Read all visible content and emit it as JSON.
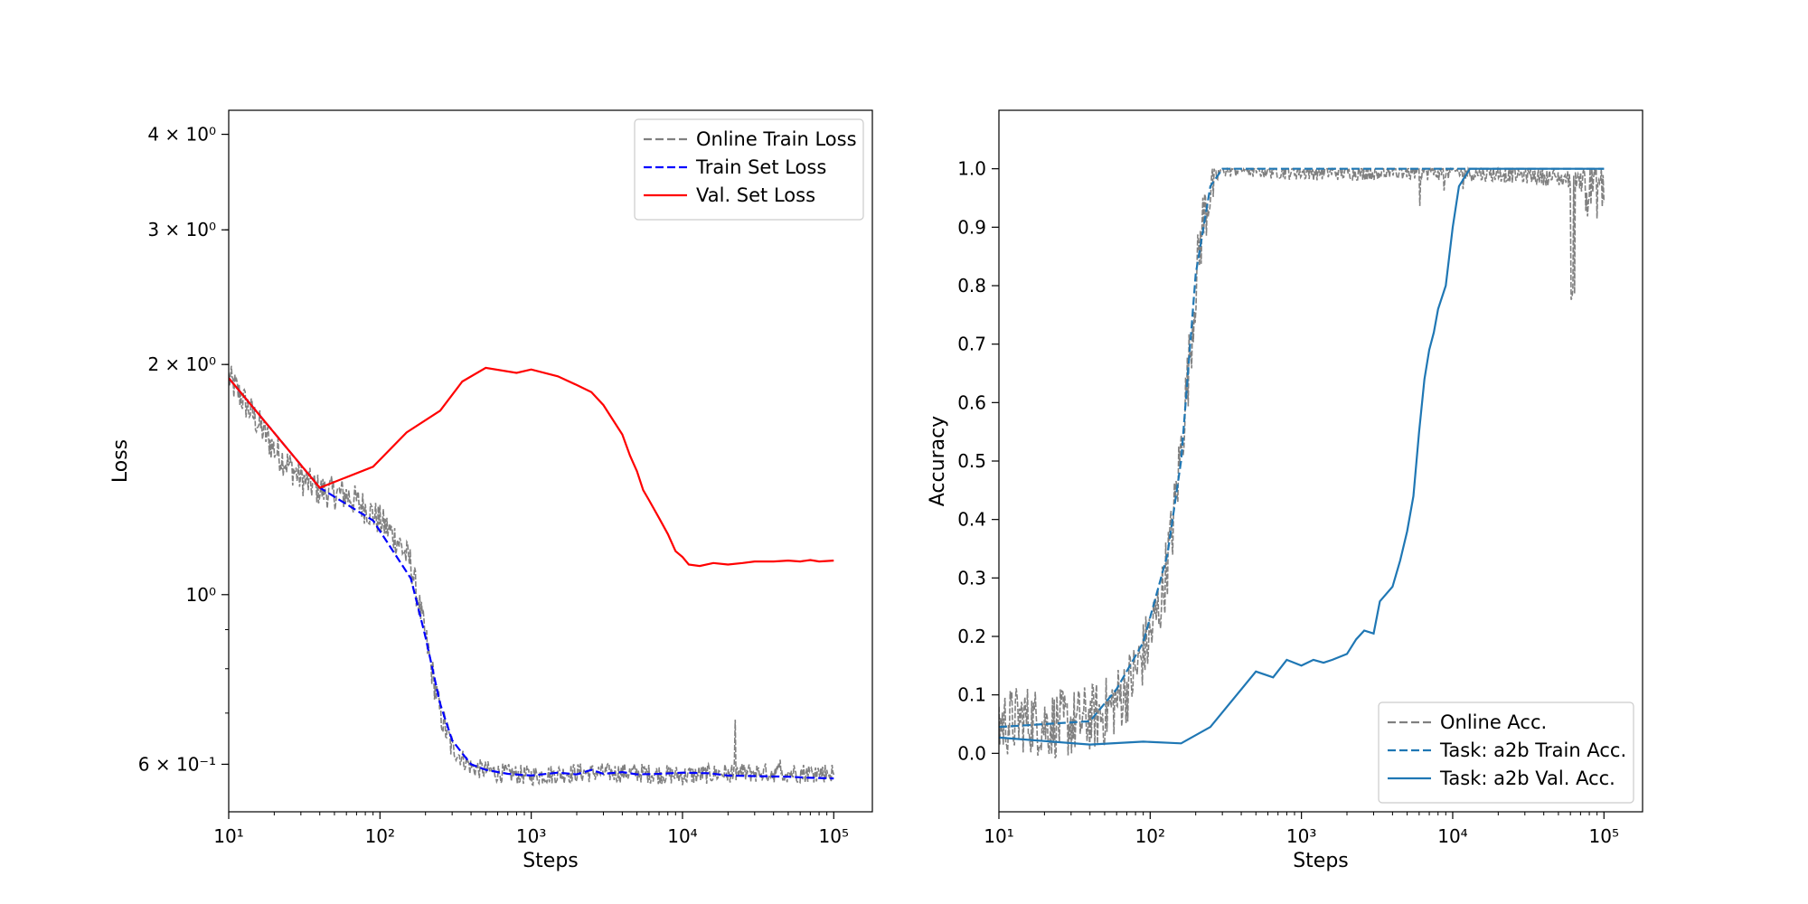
{
  "chart_data": [
    {
      "type": "line",
      "xlabel": "Steps",
      "ylabel": "Loss",
      "xscale": "log",
      "yscale": "log",
      "xlim": [
        10,
        180000
      ],
      "ylim": [
        0.52,
        4.3
      ],
      "x_ticks": [
        {
          "value": 10,
          "label": "10¹"
        },
        {
          "value": 100,
          "label": "10²"
        },
        {
          "value": 1000,
          "label": "10³"
        },
        {
          "value": 10000,
          "label": "10⁴"
        },
        {
          "value": 100000,
          "label": "10⁵"
        }
      ],
      "y_ticks": [
        {
          "value": 0.6,
          "label": "6 × 10⁻¹"
        },
        {
          "value": 1.0,
          "label": "10⁰"
        },
        {
          "value": 2.0,
          "label": "2 × 10⁰"
        },
        {
          "value": 3.0,
          "label": "3 × 10⁰"
        },
        {
          "value": 4.0,
          "label": "4 × 10⁰"
        }
      ],
      "legend_position": "top-right",
      "series": [
        {
          "name": "Online Train Loss",
          "color": "#808080",
          "style": "dashed",
          "noisy": true,
          "x": [
            10,
            15,
            20,
            30,
            40,
            60,
            80,
            100,
            130,
            160,
            200,
            250,
            300,
            400,
            600,
            1000,
            2000,
            5000,
            10000,
            20000,
            50000,
            100000
          ],
          "y": [
            1.92,
            1.7,
            1.55,
            1.42,
            1.37,
            1.35,
            1.3,
            1.25,
            1.18,
            1.1,
            0.88,
            0.7,
            0.63,
            0.595,
            0.585,
            0.58,
            0.585,
            0.585,
            0.58,
            0.585,
            0.585,
            0.585
          ]
        },
        {
          "name": "Train Set Loss",
          "color": "#0000ff",
          "style": "dashed",
          "x": [
            10,
            40,
            90,
            160,
            200,
            250,
            300,
            350,
            400,
            500,
            700,
            1000,
            1500,
            2000,
            2500,
            3000,
            4000,
            5000,
            7000,
            10000,
            15000,
            20000,
            30000,
            50000,
            70000,
            100000
          ],
          "y": [
            1.92,
            1.38,
            1.25,
            1.05,
            0.88,
            0.72,
            0.645,
            0.62,
            0.6,
            0.59,
            0.583,
            0.58,
            0.585,
            0.582,
            0.59,
            0.583,
            0.586,
            0.582,
            0.583,
            0.585,
            0.584,
            0.58,
            0.579,
            0.578,
            0.576,
            0.575
          ]
        },
        {
          "name": "Val. Set Loss",
          "color": "#ff0000",
          "style": "solid",
          "x": [
            10,
            40,
            90,
            150,
            250,
            350,
            500,
            800,
            1000,
            1500,
            2000,
            2500,
            3000,
            4000,
            4500,
            5000,
            5500,
            6000,
            7000,
            8000,
            9000,
            10000,
            11000,
            13000,
            16000,
            20000,
            25000,
            30000,
            40000,
            50000,
            60000,
            70000,
            80000,
            100000
          ],
          "y": [
            1.92,
            1.38,
            1.47,
            1.63,
            1.74,
            1.9,
            1.98,
            1.95,
            1.97,
            1.93,
            1.88,
            1.84,
            1.77,
            1.62,
            1.52,
            1.45,
            1.37,
            1.33,
            1.26,
            1.2,
            1.14,
            1.12,
            1.095,
            1.09,
            1.1,
            1.095,
            1.1,
            1.105,
            1.105,
            1.108,
            1.105,
            1.11,
            1.105,
            1.108
          ]
        }
      ]
    },
    {
      "type": "line",
      "xlabel": "Steps",
      "ylabel": "Accuracy",
      "xscale": "log",
      "yscale": "linear",
      "xlim": [
        10,
        180000
      ],
      "ylim": [
        -0.1,
        1.1
      ],
      "x_ticks": [
        {
          "value": 10,
          "label": "10¹"
        },
        {
          "value": 100,
          "label": "10²"
        },
        {
          "value": 1000,
          "label": "10³"
        },
        {
          "value": 10000,
          "label": "10⁴"
        },
        {
          "value": 100000,
          "label": "10⁵"
        }
      ],
      "y_ticks": [
        {
          "value": 0.0,
          "label": "0.0"
        },
        {
          "value": 0.1,
          "label": "0.1"
        },
        {
          "value": 0.2,
          "label": "0.2"
        },
        {
          "value": 0.3,
          "label": "0.3"
        },
        {
          "value": 0.4,
          "label": "0.4"
        },
        {
          "value": 0.5,
          "label": "0.5"
        },
        {
          "value": 0.6,
          "label": "0.6"
        },
        {
          "value": 0.7,
          "label": "0.7"
        },
        {
          "value": 0.8,
          "label": "0.8"
        },
        {
          "value": 0.9,
          "label": "0.9"
        },
        {
          "value": 1.0,
          "label": "1.0"
        }
      ],
      "legend_position": "bottom-right",
      "series": [
        {
          "name": "Online Acc.",
          "color": "#808080",
          "style": "dashed",
          "noisy": true,
          "x": [
            10,
            15,
            20,
            30,
            40,
            50,
            60,
            70,
            80,
            90,
            100,
            120,
            140,
            160,
            180,
            200,
            220,
            250,
            300,
            400,
            1000,
            3000,
            10000,
            30000,
            70000,
            100000
          ],
          "y": [
            0.05,
            0.06,
            0.05,
            0.05,
            0.06,
            0.07,
            0.09,
            0.11,
            0.14,
            0.17,
            0.2,
            0.27,
            0.38,
            0.52,
            0.66,
            0.8,
            0.9,
            0.97,
            1.0,
            1.0,
            0.995,
            0.995,
            0.995,
            0.99,
            0.98,
            0.97
          ]
        },
        {
          "name": "Task: a2b Train Acc.",
          "color": "#1f77b4",
          "style": "dashed",
          "x": [
            10,
            40,
            60,
            90,
            130,
            160,
            200,
            250,
            300,
            500,
            1000,
            3000,
            10000,
            100000
          ],
          "y": [
            0.045,
            0.055,
            0.11,
            0.19,
            0.34,
            0.5,
            0.82,
            0.97,
            1.0,
            1.0,
            1.0,
            1.0,
            1.0,
            1.0
          ]
        },
        {
          "name": "Task: a2b Val. Acc.",
          "color": "#1f77b4",
          "style": "solid",
          "x": [
            10,
            40,
            90,
            160,
            250,
            500,
            650,
            800,
            1000,
            1200,
            1400,
            1600,
            2000,
            2300,
            2600,
            3000,
            3300,
            4000,
            4500,
            5000,
            5500,
            6000,
            6500,
            7000,
            7500,
            8000,
            9000,
            10000,
            11000,
            13000,
            20000,
            50000,
            100000
          ],
          "y": [
            0.027,
            0.015,
            0.02,
            0.017,
            0.045,
            0.14,
            0.13,
            0.16,
            0.15,
            0.16,
            0.155,
            0.16,
            0.17,
            0.195,
            0.21,
            0.205,
            0.26,
            0.285,
            0.33,
            0.38,
            0.44,
            0.55,
            0.64,
            0.69,
            0.72,
            0.76,
            0.8,
            0.9,
            0.97,
            1.0,
            1.0,
            1.0,
            1.0
          ]
        }
      ]
    }
  ]
}
